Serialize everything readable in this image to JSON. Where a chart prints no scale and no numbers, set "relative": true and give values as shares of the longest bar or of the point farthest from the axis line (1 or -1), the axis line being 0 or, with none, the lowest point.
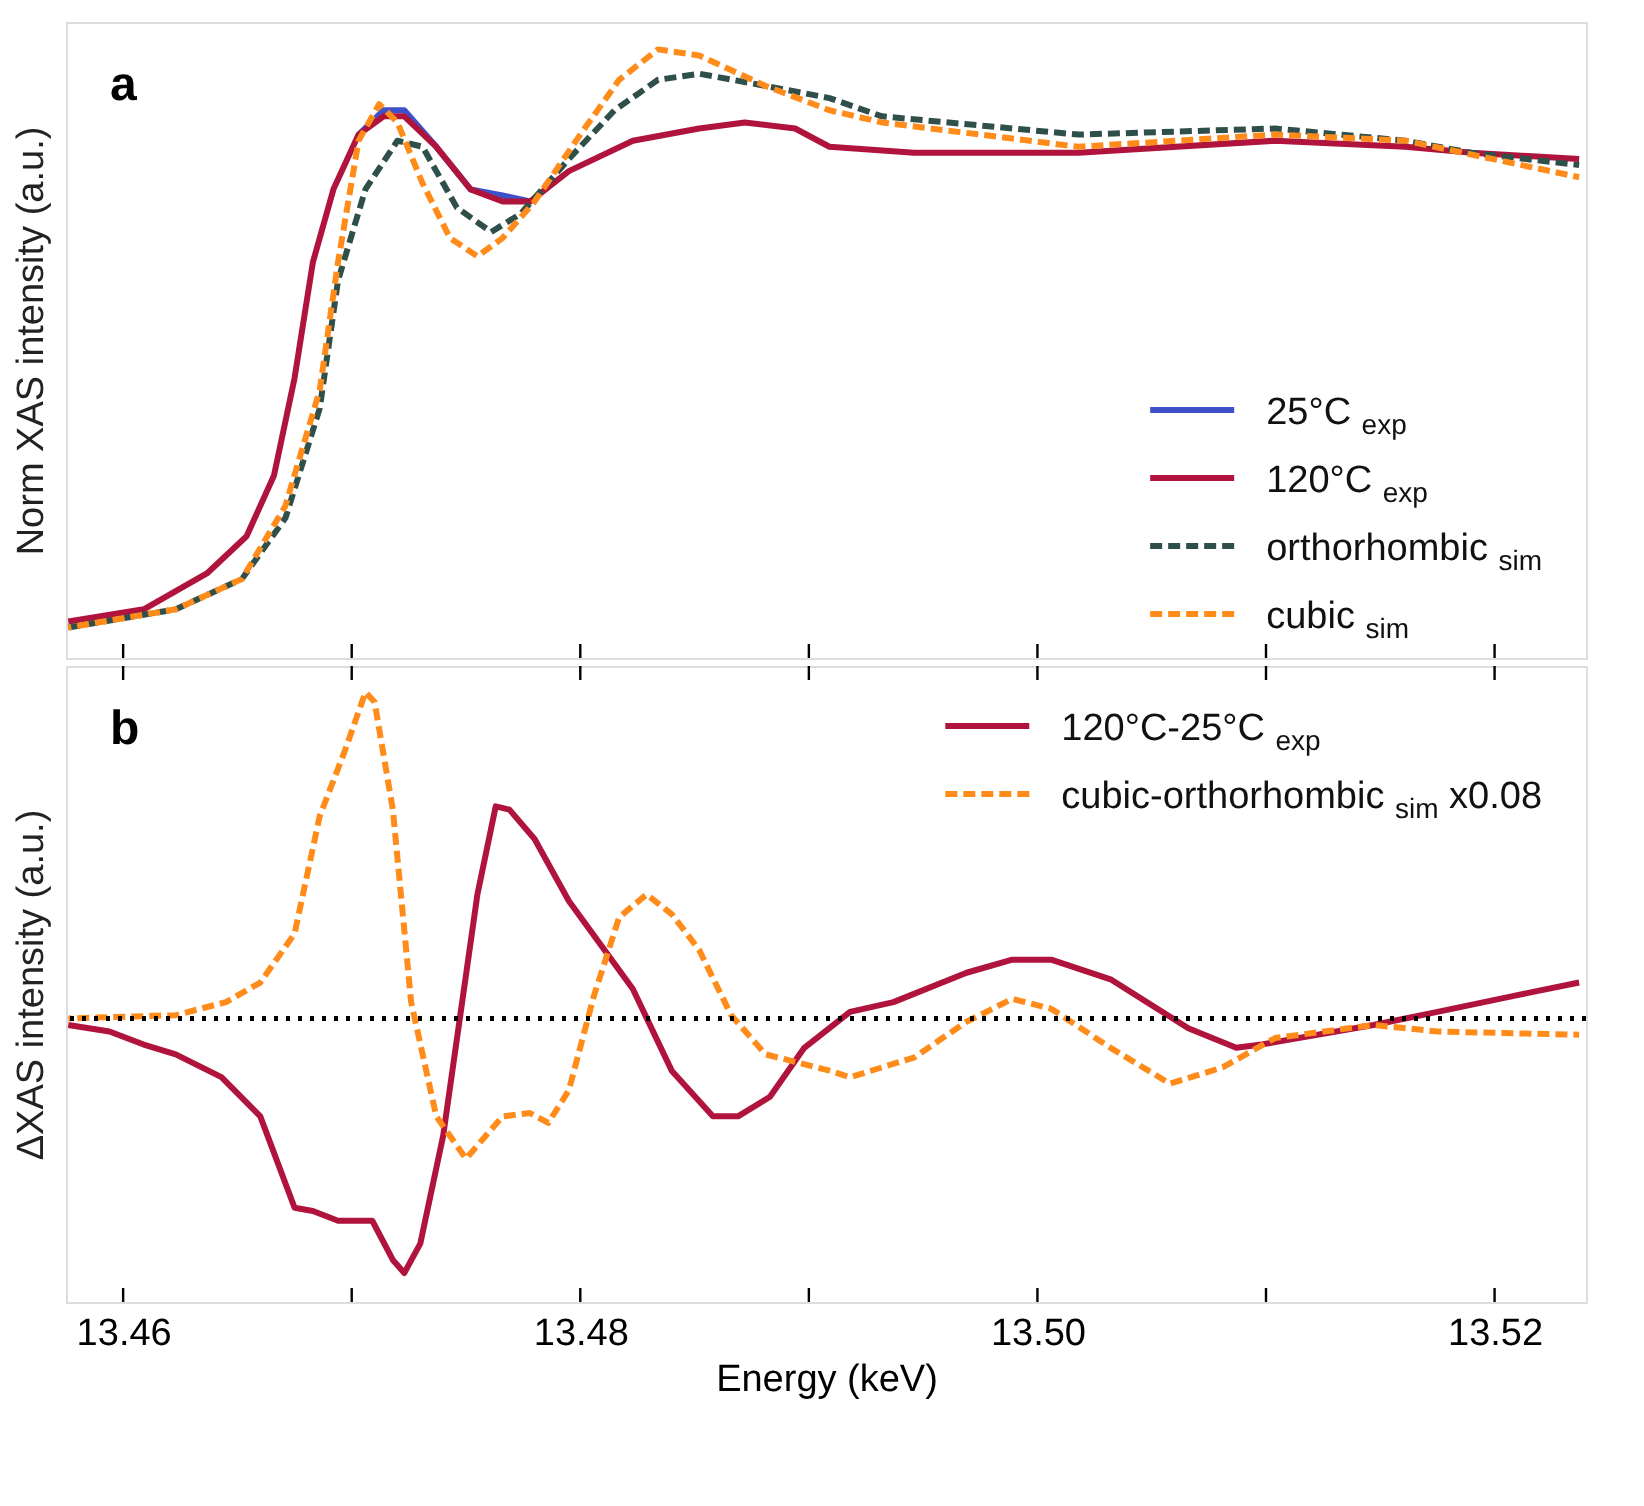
{
  "chart_data": [
    {
      "type": "line",
      "relative": true,
      "ylabel": "Norm XAS intensity (a.u.)",
      "xlim": [
        13.4575,
        13.524
      ],
      "xticks": [
        13.46,
        13.47,
        13.48,
        13.49,
        13.5,
        13.51,
        13.52
      ],
      "tick_labels": false,
      "legend": "bottom right",
      "annotations": [
        "a"
      ],
      "series": [
        {
          "name": "25°C $_{exp}$",
          "color": "#3f51c8",
          "line_style": "solid",
          "x": [
            13.4703,
            13.4714,
            13.4723,
            13.4737,
            13.4752,
            13.4766,
            13.4778
          ],
          "values": [
            0.86,
            0.9,
            0.9,
            0.84,
            0.77,
            0.76,
            0.75
          ]
        },
        {
          "name": "120°C $_{exp}$",
          "color": "#b0143c",
          "line_style": "solid",
          "x": [
            13.4576,
            13.4609,
            13.4637,
            13.4654,
            13.4666,
            13.4675,
            13.4683,
            13.4692,
            13.4703,
            13.4714,
            13.4723,
            13.4737,
            13.4752,
            13.4766,
            13.4778,
            13.4795,
            13.4823,
            13.4852,
            13.4872,
            13.4894,
            13.4909,
            13.4946,
            13.5018,
            13.5104,
            13.5161,
            13.519,
            13.5237
          ],
          "values": [
            0.06,
            0.08,
            0.14,
            0.2,
            0.3,
            0.46,
            0.65,
            0.77,
            0.86,
            0.89,
            0.89,
            0.84,
            0.77,
            0.75,
            0.75,
            0.8,
            0.85,
            0.87,
            0.88,
            0.87,
            0.84,
            0.83,
            0.83,
            0.85,
            0.84,
            0.83,
            0.82
          ]
        },
        {
          "name": "orthorhombic $_{sim}$",
          "color": "#2f4f4a",
          "line_style": "dashed",
          "x": [
            13.4576,
            13.4623,
            13.4652,
            13.4671,
            13.4686,
            13.4694,
            13.4706,
            13.472,
            13.4731,
            13.4746,
            13.4761,
            13.4774,
            13.4795,
            13.4815,
            13.4834,
            13.4852,
            13.4881,
            13.4909,
            13.4932,
            13.5018,
            13.5104,
            13.5161,
            13.519,
            13.5237
          ],
          "values": [
            0.05,
            0.08,
            0.13,
            0.23,
            0.41,
            0.62,
            0.77,
            0.85,
            0.84,
            0.74,
            0.7,
            0.73,
            0.82,
            0.9,
            0.95,
            0.96,
            0.94,
            0.92,
            0.89,
            0.86,
            0.87,
            0.85,
            0.83,
            0.81
          ]
        },
        {
          "name": "cubic $_{sim}$",
          "color": "#ff8c1a",
          "line_style": "dashed",
          "x": [
            13.4576,
            13.4623,
            13.4652,
            13.4671,
            13.4686,
            13.4694,
            13.4703,
            13.4712,
            13.472,
            13.4731,
            13.4743,
            13.4755,
            13.4766,
            13.478,
            13.48,
            13.4817,
            13.4834,
            13.4852,
            13.4881,
            13.4909,
            13.4932,
            13.5018,
            13.5104,
            13.5161,
            13.5237
          ],
          "values": [
            0.05,
            0.08,
            0.13,
            0.25,
            0.44,
            0.65,
            0.85,
            0.91,
            0.88,
            0.78,
            0.69,
            0.66,
            0.69,
            0.75,
            0.86,
            0.95,
            1.0,
            0.99,
            0.94,
            0.9,
            0.88,
            0.84,
            0.86,
            0.85,
            0.79
          ]
        }
      ]
    },
    {
      "type": "line",
      "relative": true,
      "ylabel": "ΔXAS intensity (a.u.)",
      "xlabel": "Energy (keV)",
      "xlim": [
        13.4575,
        13.524
      ],
      "xticks": [
        13.46,
        {
          "value": 13.47,
          "label": null
        },
        13.48,
        {
          "value": 13.49,
          "label": null
        },
        {
          "value": 13.5,
          "label": "13.50"
        },
        {
          "value": 13.51,
          "label": null
        },
        13.52
      ],
      "tick_labels": "x",
      "legend": "top right",
      "annotations": [
        "b"
      ],
      "ref_lines": [
        {
          "axis": "y",
          "value": 0,
          "label": null,
          "color": "#000000",
          "line_style": "dotted"
        }
      ],
      "series": [
        {
          "name": "120°C-25°C $_{exp}$",
          "color": "#b0143c",
          "line_style": "solid",
          "x": [
            13.4576,
            13.4594,
            13.4609,
            13.4623,
            13.4643,
            13.466,
            13.4675,
            13.4683,
            13.4694,
            13.4709,
            13.4718,
            13.4723,
            13.473,
            13.474,
            13.4755,
            13.4763,
            13.4769,
            13.478,
            13.4795,
            13.4823,
            13.484,
            13.4858,
            13.4869,
            13.4883,
            13.4898,
            13.4918,
            13.4937,
            13.4969,
            13.4989,
            13.5006,
            13.5032,
            13.5066,
            13.5087,
            13.5098,
            13.5147,
            13.5175,
            13.5209,
            13.5237
          ],
          "values": [
            -0.02,
            -0.04,
            -0.08,
            -0.11,
            -0.18,
            -0.3,
            -0.58,
            -0.59,
            -0.62,
            -0.62,
            -0.74,
            -0.78,
            -0.69,
            -0.36,
            0.38,
            0.65,
            0.64,
            0.55,
            0.36,
            0.09,
            -0.16,
            -0.3,
            -0.3,
            -0.24,
            -0.09,
            0.02,
            0.05,
            0.14,
            0.18,
            0.18,
            0.12,
            -0.03,
            -0.09,
            -0.08,
            -0.02,
            0.02,
            0.07,
            0.11
          ]
        },
        {
          "name": "cubic-orthorhombic $_{sim}$ x0.08",
          "color": "#ff8c1a",
          "line_style": "dashed",
          "x": [
            13.4576,
            13.4623,
            13.4645,
            13.466,
            13.4675,
            13.4686,
            13.4697,
            13.4706,
            13.471,
            13.4718,
            13.4726,
            13.4737,
            13.475,
            13.4766,
            13.4778,
            13.4786,
            13.4795,
            13.4806,
            13.4817,
            13.4829,
            13.484,
            13.4852,
            13.4866,
            13.4881,
            13.4909,
            13.4918,
            13.4946,
            13.4969,
            13.4989,
            13.5006,
            13.5032,
            13.5058,
            13.5081,
            13.5104,
            13.5147,
            13.5175,
            13.5237
          ],
          "values": [
            0.0,
            0.01,
            0.05,
            0.11,
            0.26,
            0.62,
            0.82,
            1.0,
            0.97,
            0.64,
            0.05,
            -0.3,
            -0.43,
            -0.3,
            -0.29,
            -0.32,
            -0.22,
            0.07,
            0.31,
            0.38,
            0.32,
            0.21,
            0.01,
            -0.11,
            -0.16,
            -0.18,
            -0.12,
            -0.01,
            0.06,
            0.03,
            -0.09,
            -0.2,
            -0.15,
            -0.06,
            -0.02,
            -0.04,
            -0.05
          ]
        }
      ]
    }
  ]
}
